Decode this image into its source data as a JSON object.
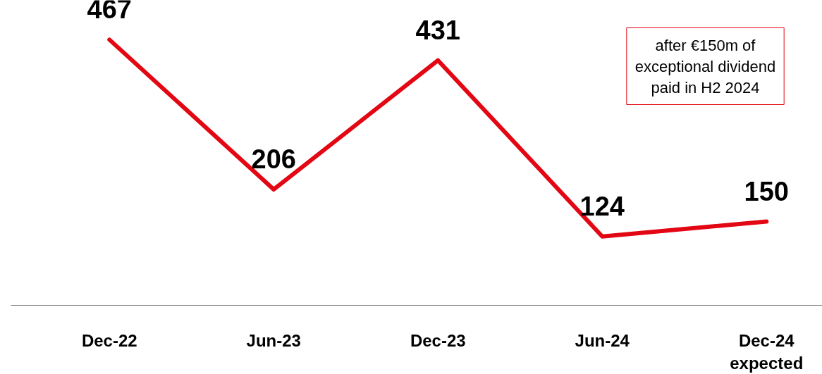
{
  "chart_data": {
    "type": "line",
    "categories": [
      "Dec-22",
      "Jun-23",
      "Dec-23",
      "Jun-24",
      "Dec-24\nexpected"
    ],
    "series": [
      {
        "color": "#e30613",
        "values": [
          467,
          206,
          431,
          124,
          150
        ]
      }
    ],
    "data_labels": true,
    "grid": false,
    "marker": "none",
    "line_style": "solid",
    "annotations": [
      "after €150m of\nexceptional dividend\npaid in H2 2024"
    ]
  }
}
